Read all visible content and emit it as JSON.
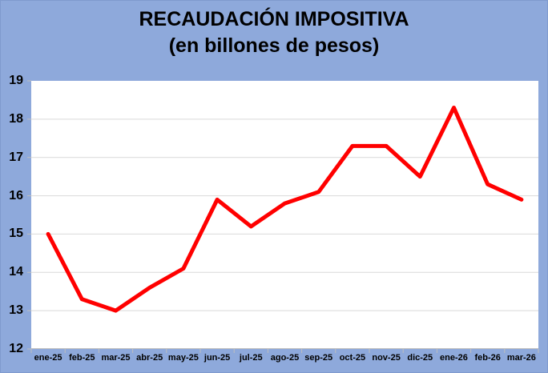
{
  "title": {
    "line1": "RECAUDACIÓN IMPOSITIVA",
    "line2": "(en billones de pesos)"
  },
  "chart_data": {
    "type": "line",
    "title": "RECAUDACIÓN IMPOSITIVA",
    "subtitle": "(en billones de pesos)",
    "categories": [
      "ene-25",
      "feb-25",
      "mar-25",
      "abr-25",
      "may-25",
      "jun-25",
      "jul-25",
      "ago-25",
      "sep-25",
      "oct-25",
      "nov-25",
      "dic-25",
      "ene-26",
      "feb-26",
      "mar-26"
    ],
    "series": [
      {
        "values": [
          15.0,
          13.3,
          13.0,
          13.6,
          14.1,
          15.9,
          15.2,
          15.8,
          16.1,
          17.3,
          17.3,
          16.5,
          18.3,
          16.3,
          15.9
        ],
        "color": "#FF0000",
        "stroke_width": 5
      }
    ],
    "xlabel": "",
    "ylabel": "",
    "ylim": [
      12,
      19
    ],
    "yticks": [
      12,
      13,
      14,
      15,
      16,
      17,
      18,
      19
    ],
    "grid": true,
    "legend": "none",
    "colors": {
      "background": "#8EA9DB",
      "plot_background": "#FFFFFF",
      "gridline": "#D9D9D9",
      "axis": "#BFBFBF",
      "text": "#000000"
    }
  }
}
